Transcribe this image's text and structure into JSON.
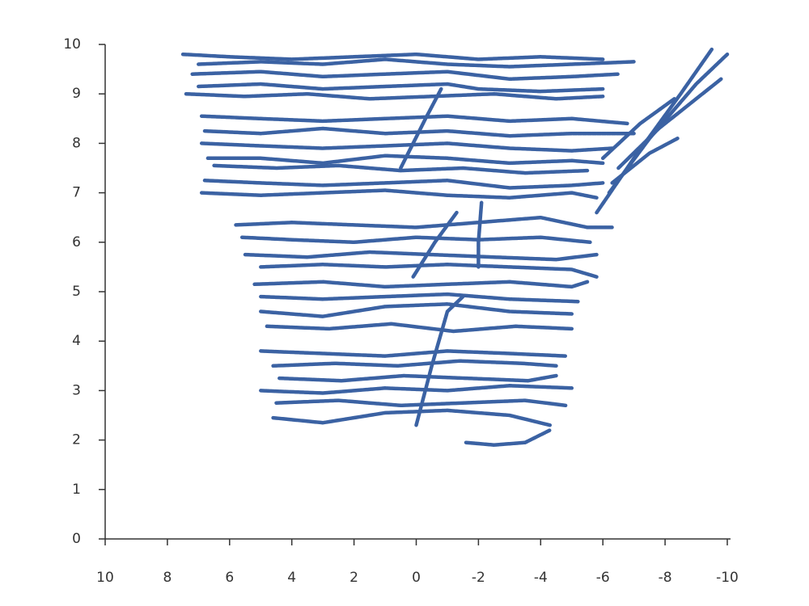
{
  "chart_data": {
    "type": "line",
    "color": "#3b62a3",
    "xlim": [
      10,
      -10
    ],
    "ylim": [
      0,
      10
    ],
    "xticks": [
      10,
      8,
      6,
      4,
      2,
      0,
      -2,
      -4,
      -6,
      -8,
      -10
    ],
    "yticks": [
      0,
      1,
      2,
      3,
      4,
      5,
      6,
      7,
      8,
      9,
      10
    ],
    "series": [
      {
        "x": [
          7.5,
          6,
          4,
          2,
          0,
          -2,
          -4,
          -6
        ],
        "values": [
          9.8,
          9.75,
          9.7,
          9.75,
          9.8,
          9.7,
          9.75,
          9.7
        ]
      },
      {
        "x": [
          7,
          5,
          3,
          1,
          -1,
          -3,
          -5,
          -7
        ],
        "values": [
          9.6,
          9.65,
          9.6,
          9.7,
          9.6,
          9.55,
          9.6,
          9.65
        ]
      },
      {
        "x": [
          7.2,
          5,
          3,
          1,
          -1,
          -3,
          -5,
          -6.5
        ],
        "values": [
          9.4,
          9.45,
          9.35,
          9.4,
          9.45,
          9.3,
          9.35,
          9.4
        ]
      },
      {
        "x": [
          7,
          5,
          3,
          1,
          -1,
          -2,
          -4,
          -6
        ],
        "values": [
          9.15,
          9.2,
          9.1,
          9.15,
          9.2,
          9.1,
          9.05,
          9.1
        ]
      },
      {
        "x": [
          7.4,
          5.5,
          3.5,
          1.5,
          -0.5,
          -2.5,
          -4.5,
          -6
        ],
        "values": [
          9.0,
          8.95,
          9.0,
          8.9,
          8.95,
          9.0,
          8.9,
          8.95
        ]
      },
      {
        "x": [
          6.9,
          5,
          3,
          1,
          -1,
          -3,
          -5,
          -6.8
        ],
        "values": [
          8.55,
          8.5,
          8.45,
          8.5,
          8.55,
          8.45,
          8.5,
          8.4
        ]
      },
      {
        "x": [
          6.8,
          5,
          3,
          1,
          -1,
          -3,
          -5,
          -7
        ],
        "values": [
          8.25,
          8.2,
          8.3,
          8.2,
          8.25,
          8.15,
          8.2,
          8.2
        ]
      },
      {
        "x": [
          6.9,
          5,
          3,
          1,
          -1,
          -3,
          -5,
          -6.3
        ],
        "values": [
          8.0,
          7.95,
          7.9,
          7.95,
          8.0,
          7.9,
          7.85,
          7.9
        ]
      },
      {
        "x": [
          6.7,
          5,
          3,
          1,
          -1,
          -3,
          -5,
          -6
        ],
        "values": [
          7.7,
          7.7,
          7.6,
          7.75,
          7.7,
          7.6,
          7.65,
          7.6
        ]
      },
      {
        "x": [
          6.5,
          4.5,
          2.5,
          0.5,
          -1.5,
          -3.5,
          -5.5
        ],
        "values": [
          7.55,
          7.5,
          7.55,
          7.45,
          7.5,
          7.4,
          7.45
        ]
      },
      {
        "x": [
          6.8,
          5,
          3,
          1,
          -1,
          -3,
          -5,
          -6
        ],
        "values": [
          7.25,
          7.2,
          7.15,
          7.2,
          7.25,
          7.1,
          7.15,
          7.2
        ]
      },
      {
        "x": [
          6.9,
          5,
          3,
          1,
          -1,
          -3,
          -5,
          -5.8
        ],
        "values": [
          7.0,
          6.95,
          7.0,
          7.05,
          6.95,
          6.9,
          7.0,
          6.9
        ]
      },
      {
        "x": [
          -5.8,
          -7,
          -8.5,
          -9.5
        ],
        "values": [
          6.6,
          7.7,
          9.0,
          9.9
        ]
      },
      {
        "x": [
          -6.2,
          -7.5,
          -9,
          -10
        ],
        "values": [
          7.0,
          8.1,
          9.2,
          9.8
        ]
      },
      {
        "x": [
          -6.5,
          -7.8,
          -9.2,
          -9.8
        ],
        "values": [
          7.5,
          8.3,
          9.0,
          9.3
        ]
      },
      {
        "x": [
          -6,
          -7.2,
          -8.3
        ],
        "values": [
          7.7,
          8.4,
          8.9
        ]
      },
      {
        "x": [
          -6.3,
          -7.5,
          -8.4
        ],
        "values": [
          7.2,
          7.8,
          8.1
        ]
      },
      {
        "x": [
          5.8,
          4,
          2,
          0,
          -2,
          -4,
          -5.5,
          -6.3
        ],
        "values": [
          6.35,
          6.4,
          6.35,
          6.3,
          6.4,
          6.5,
          6.3,
          6.3
        ]
      },
      {
        "x": [
          5.6,
          4,
          2,
          0,
          -2,
          -4,
          -5.6
        ],
        "values": [
          6.1,
          6.05,
          6.0,
          6.1,
          6.05,
          6.1,
          6.0
        ]
      },
      {
        "x": [
          5.5,
          3.5,
          1.5,
          -0.5,
          -2.5,
          -4.5,
          -5.8
        ],
        "values": [
          5.75,
          5.7,
          5.8,
          5.75,
          5.7,
          5.65,
          5.75
        ]
      },
      {
        "x": [
          5,
          3,
          1,
          -1,
          -3,
          -5,
          -5.8
        ],
        "values": [
          5.5,
          5.55,
          5.5,
          5.55,
          5.5,
          5.45,
          5.3
        ]
      },
      {
        "x": [
          5.2,
          3,
          1,
          -1,
          -3,
          -5,
          -5.5
        ],
        "values": [
          5.15,
          5.2,
          5.1,
          5.15,
          5.2,
          5.1,
          5.2
        ]
      },
      {
        "x": [
          5,
          3,
          1,
          -1,
          -3,
          -5.2
        ],
        "values": [
          4.9,
          4.85,
          4.9,
          4.95,
          4.85,
          4.8
        ]
      },
      {
        "x": [
          5,
          3,
          1,
          -1,
          -3,
          -5
        ],
        "values": [
          4.6,
          4.5,
          4.7,
          4.75,
          4.6,
          4.55
        ]
      },
      {
        "x": [
          4.8,
          2.8,
          0.8,
          -1.2,
          -3.2,
          -5
        ],
        "values": [
          4.3,
          4.25,
          4.35,
          4.2,
          4.3,
          4.25
        ]
      },
      {
        "x": [
          5,
          3,
          1,
          -1,
          -3,
          -4.8
        ],
        "values": [
          3.8,
          3.75,
          3.7,
          3.8,
          3.75,
          3.7
        ]
      },
      {
        "x": [
          4.6,
          2.6,
          0.6,
          -1.4,
          -3.4,
          -4.5
        ],
        "values": [
          3.5,
          3.55,
          3.5,
          3.6,
          3.55,
          3.5
        ]
      },
      {
        "x": [
          4.4,
          2.4,
          0.4,
          -1.6,
          -3.6,
          -4.5
        ],
        "values": [
          3.25,
          3.2,
          3.3,
          3.25,
          3.2,
          3.3
        ]
      },
      {
        "x": [
          5,
          3,
          1,
          -1,
          -3,
          -5
        ],
        "values": [
          3.0,
          2.95,
          3.05,
          3.0,
          3.1,
          3.05
        ]
      },
      {
        "x": [
          4.5,
          2.5,
          0.5,
          -1.5,
          -3.5,
          -4.8
        ],
        "values": [
          2.75,
          2.8,
          2.7,
          2.75,
          2.8,
          2.7
        ]
      },
      {
        "x": [
          4.6,
          3,
          1,
          -1,
          -3,
          -4.3
        ],
        "values": [
          2.45,
          2.35,
          2.55,
          2.6,
          2.5,
          2.3
        ]
      },
      {
        "x": [
          -1.6,
          -2.5,
          -3.5,
          -4.3
        ],
        "values": [
          1.95,
          1.9,
          1.95,
          2.2
        ]
      },
      {
        "x": [
          0,
          -0.5,
          -1,
          -1.5
        ],
        "values": [
          2.3,
          3.5,
          4.6,
          4.9
        ]
      },
      {
        "x": [
          0.1,
          -0.6,
          -1.3
        ],
        "values": [
          5.3,
          6.0,
          6.6
        ]
      },
      {
        "x": [
          -2,
          -2,
          -2.1
        ],
        "values": [
          5.5,
          6.0,
          6.8
        ]
      },
      {
        "x": [
          0.5,
          -0.3,
          -0.8
        ],
        "values": [
          7.5,
          8.5,
          9.1
        ]
      }
    ]
  }
}
